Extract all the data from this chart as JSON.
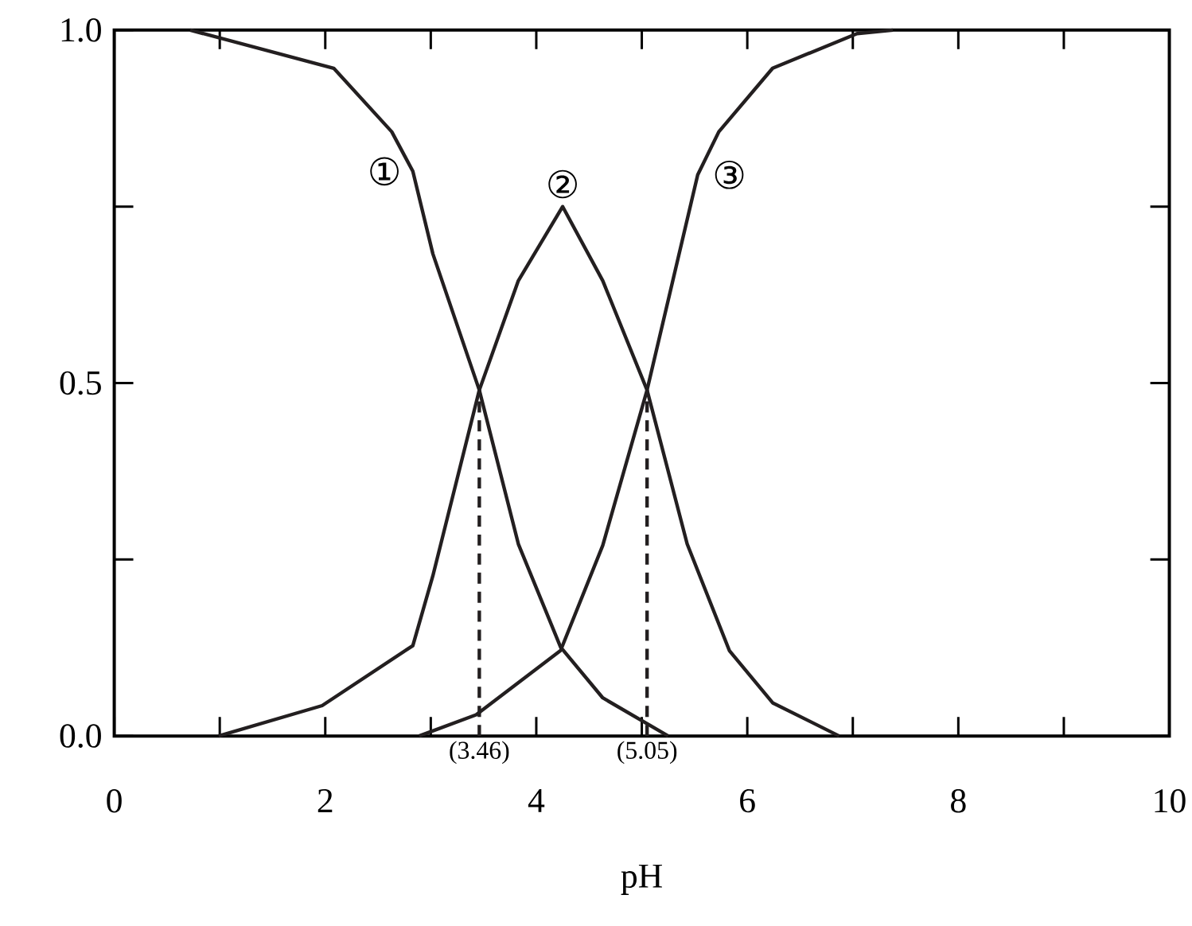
{
  "chart_data": {
    "type": "line",
    "xlabel": "pH",
    "xlim": [
      0,
      10
    ],
    "ylim": [
      0,
      1.0
    ],
    "xticks": [
      0,
      {
        "value": 1,
        "label": null
      },
      2,
      {
        "value": 3,
        "label": null
      },
      4,
      {
        "value": 5,
        "label": null
      },
      6,
      {
        "value": 7,
        "label": null
      },
      8,
      {
        "value": 9,
        "label": null
      },
      10
    ],
    "yticks": [
      {
        "value": 0,
        "label": "0.0"
      },
      {
        "value": 0.25,
        "label": null
      },
      {
        "value": 0.5,
        "label": "0.5"
      },
      {
        "value": 0.75,
        "label": null
      },
      {
        "value": 1.0,
        "label": "1.0"
      }
    ],
    "grid": false,
    "legend": false,
    "marker": "none",
    "series": [
      {
        "name": "①",
        "color": "#231f20",
        "line_style": "solid",
        "x": [
          0.72,
          2.08,
          2.63,
          2.83,
          3.02,
          3.46,
          3.83,
          4.23,
          4.63,
          5.25
        ],
        "values": [
          1.0,
          0.946,
          0.856,
          0.8,
          0.683,
          0.49,
          0.272,
          0.126,
          0.054,
          0.0
        ]
      },
      {
        "name": "②",
        "color": "#231f20",
        "line_style": "solid",
        "x": [
          0.99,
          1.97,
          2.83,
          3.02,
          3.46,
          3.83,
          4.25,
          4.63,
          5.05,
          5.43,
          5.83,
          6.24,
          6.87
        ],
        "values": [
          0.0,
          0.043,
          0.128,
          0.227,
          0.49,
          0.645,
          0.75,
          0.645,
          0.49,
          0.272,
          0.121,
          0.047,
          0.0
        ]
      },
      {
        "name": "③",
        "color": "#231f20",
        "line_style": "solid",
        "x": [
          2.89,
          3.43,
          4.23,
          4.63,
          5.05,
          5.53,
          5.73,
          6.24,
          7.04,
          7.38
        ],
        "values": [
          0.0,
          0.03,
          0.121,
          0.27,
          0.49,
          0.795,
          0.856,
          0.946,
          0.995,
          1.0
        ]
      },
      {
        "color": "#231f20",
        "line_style": "dashed",
        "x": [
          3.46,
          3.46
        ],
        "values": [
          0.0,
          0.49
        ]
      },
      {
        "color": "#231f20",
        "line_style": "dashed",
        "x": [
          5.05,
          5.05
        ],
        "values": [
          0.0,
          0.49
        ]
      }
    ],
    "annotations": [
      {
        "text": "(3.46)",
        "x": 3.46,
        "y": 0.0
      },
      {
        "text": "(5.05)",
        "x": 5.05,
        "y": 0.0
      }
    ]
  }
}
